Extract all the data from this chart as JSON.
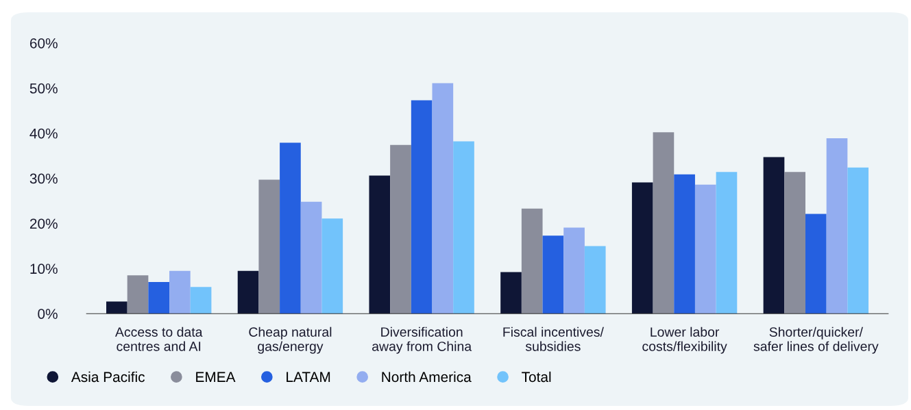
{
  "chart_data": {
    "type": "bar",
    "categories": [
      "Access to data\ncentres and AI",
      "Cheap natural\ngas/energy",
      "Diversification\naway from China",
      "Fiscal incentives/\nsubsidies",
      "Lower labor\ncosts/flexibility",
      "Shorter/quicker/\nsafer lines of delivery"
    ],
    "series": [
      {
        "name": "Asia Pacific",
        "color": "#0f1636",
        "values": [
          2.7,
          9.5,
          30.6,
          9.2,
          29.1,
          34.7
        ]
      },
      {
        "name": "EMEA",
        "color": "#8a8d9b",
        "values": [
          8.5,
          29.7,
          37.4,
          23.3,
          40.2,
          31.4
        ]
      },
      {
        "name": "LATAM",
        "color": "#2560e0",
        "values": [
          7.0,
          37.9,
          47.3,
          17.3,
          30.9,
          22.1
        ]
      },
      {
        "name": "North America",
        "color": "#93adf0",
        "values": [
          9.5,
          24.8,
          51.1,
          19.1,
          28.6,
          38.9
        ]
      },
      {
        "name": "Total",
        "color": "#72c3fb",
        "values": [
          5.9,
          21.1,
          38.2,
          15.0,
          31.4,
          32.4
        ]
      }
    ],
    "ylim": [
      0,
      60
    ],
    "yticks": [
      {
        "value": 0,
        "label": "0%"
      },
      {
        "value": 10,
        "label": "10%"
      },
      {
        "value": 20,
        "label": "20%"
      },
      {
        "value": 30,
        "label": "30%"
      },
      {
        "value": 40,
        "label": "40%"
      },
      {
        "value": 50,
        "label": "50%"
      },
      {
        "value": 60,
        "label": "60%"
      }
    ],
    "grid": false,
    "legend": "bottom left"
  }
}
